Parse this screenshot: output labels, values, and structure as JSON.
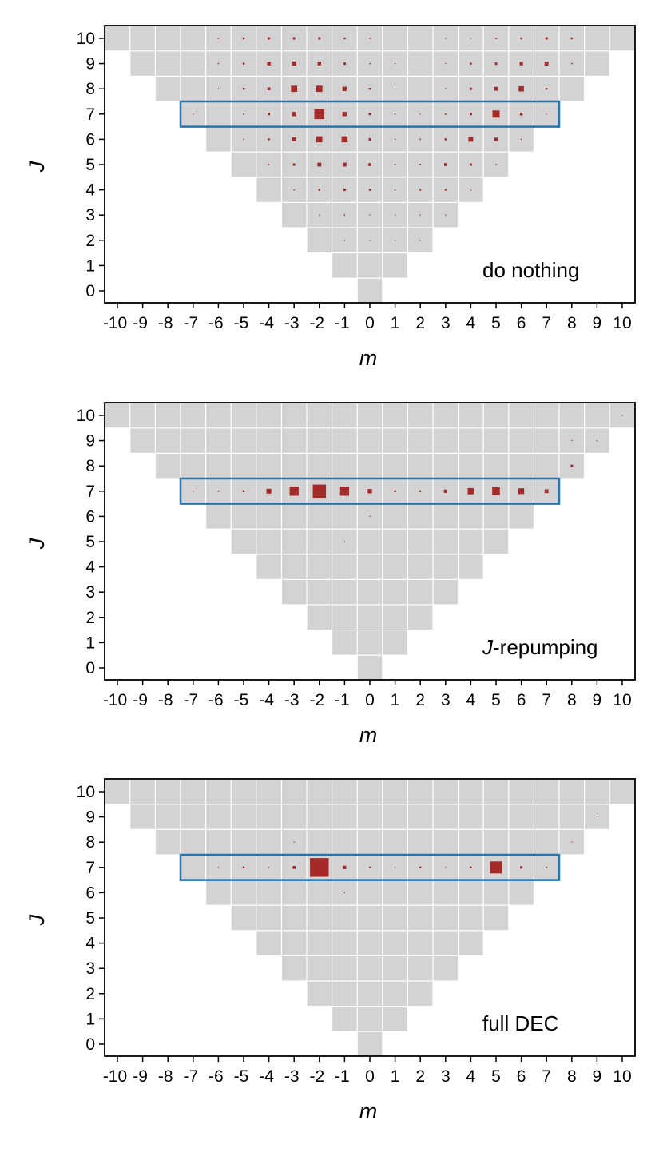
{
  "colors": {
    "cell": "#d3d3d3",
    "cell_border": "#ffffff",
    "marker": "#a52a2a",
    "highlight": "#1f77b4",
    "axis": "#000000"
  },
  "chart_data": [
    {
      "type": "heatmap",
      "label": "do nothing",
      "label_prefix": "",
      "label_suffix": "do nothing",
      "xlabel": "m",
      "ylabel": "J",
      "xlim": [
        -10,
        10
      ],
      "ylim": [
        0,
        10
      ],
      "x_ticks": [
        "-10",
        "-9",
        "-8",
        "-7",
        "-6",
        "-5",
        "-4",
        "-3",
        "-2",
        "-1",
        "0",
        "1",
        "2",
        "3",
        "4",
        "5",
        "6",
        "7",
        "8",
        "9",
        "10"
      ],
      "y_ticks": [
        "0",
        "1",
        "2",
        "3",
        "4",
        "5",
        "6",
        "7",
        "8",
        "9",
        "10"
      ],
      "highlight_row": 7,
      "highlight_m_range": [
        -7,
        7
      ],
      "points": [
        {
          "J": 10,
          "m": -6,
          "w": 0.05
        },
        {
          "J": 10,
          "m": -5,
          "w": 0.08
        },
        {
          "J": 10,
          "m": -4,
          "w": 0.1
        },
        {
          "J": 10,
          "m": -3,
          "w": 0.1
        },
        {
          "J": 10,
          "m": -2,
          "w": 0.1
        },
        {
          "J": 10,
          "m": -1,
          "w": 0.08
        },
        {
          "J": 10,
          "m": 0,
          "w": 0.05
        },
        {
          "J": 10,
          "m": 3,
          "w": 0.03
        },
        {
          "J": 10,
          "m": 4,
          "w": 0.04
        },
        {
          "J": 10,
          "m": 5,
          "w": 0.06
        },
        {
          "J": 10,
          "m": 6,
          "w": 0.08
        },
        {
          "J": 10,
          "m": 7,
          "w": 0.1
        },
        {
          "J": 10,
          "m": 8,
          "w": 0.08
        },
        {
          "J": 9,
          "m": -6,
          "w": 0.05
        },
        {
          "J": 9,
          "m": -5,
          "w": 0.08
        },
        {
          "J": 9,
          "m": -4,
          "w": 0.15
        },
        {
          "J": 9,
          "m": -3,
          "w": 0.18
        },
        {
          "J": 9,
          "m": -2,
          "w": 0.15
        },
        {
          "J": 9,
          "m": -1,
          "w": 0.1
        },
        {
          "J": 9,
          "m": 0,
          "w": 0.05
        },
        {
          "J": 9,
          "m": 1,
          "w": 0.03
        },
        {
          "J": 9,
          "m": 3,
          "w": 0.04
        },
        {
          "J": 9,
          "m": 4,
          "w": 0.08
        },
        {
          "J": 9,
          "m": 5,
          "w": 0.1
        },
        {
          "J": 9,
          "m": 6,
          "w": 0.14
        },
        {
          "J": 9,
          "m": 7,
          "w": 0.16
        },
        {
          "J": 9,
          "m": 8,
          "w": 0.05
        },
        {
          "J": 8,
          "m": -6,
          "w": 0.04
        },
        {
          "J": 8,
          "m": -5,
          "w": 0.08
        },
        {
          "J": 8,
          "m": -4,
          "w": 0.12
        },
        {
          "J": 8,
          "m": -3,
          "w": 0.26
        },
        {
          "J": 8,
          "m": -2,
          "w": 0.26
        },
        {
          "J": 8,
          "m": -1,
          "w": 0.18
        },
        {
          "J": 8,
          "m": 0,
          "w": 0.08
        },
        {
          "J": 8,
          "m": 1,
          "w": 0.05
        },
        {
          "J": 8,
          "m": 3,
          "w": 0.05
        },
        {
          "J": 8,
          "m": 4,
          "w": 0.1
        },
        {
          "J": 8,
          "m": 5,
          "w": 0.16
        },
        {
          "J": 8,
          "m": 6,
          "w": 0.22
        },
        {
          "J": 8,
          "m": 7,
          "w": 0.08
        },
        {
          "J": 7,
          "m": -7,
          "w": 0.03
        },
        {
          "J": 7,
          "m": -5,
          "w": 0.05
        },
        {
          "J": 7,
          "m": -4,
          "w": 0.1
        },
        {
          "J": 7,
          "m": -3,
          "w": 0.18
        },
        {
          "J": 7,
          "m": -2,
          "w": 0.42
        },
        {
          "J": 7,
          "m": -1,
          "w": 0.18
        },
        {
          "J": 7,
          "m": 0,
          "w": 0.1
        },
        {
          "J": 7,
          "m": 1,
          "w": 0.05
        },
        {
          "J": 7,
          "m": 2,
          "w": 0.04
        },
        {
          "J": 7,
          "m": 3,
          "w": 0.06
        },
        {
          "J": 7,
          "m": 4,
          "w": 0.1
        },
        {
          "J": 7,
          "m": 5,
          "w": 0.3
        },
        {
          "J": 7,
          "m": 6,
          "w": 0.12
        },
        {
          "J": 7,
          "m": 7,
          "w": 0.04
        },
        {
          "J": 6,
          "m": -5,
          "w": 0.04
        },
        {
          "J": 6,
          "m": -4,
          "w": 0.08
        },
        {
          "J": 6,
          "m": -3,
          "w": 0.16
        },
        {
          "J": 6,
          "m": -2,
          "w": 0.25
        },
        {
          "J": 6,
          "m": -1,
          "w": 0.25
        },
        {
          "J": 6,
          "m": 0,
          "w": 0.1
        },
        {
          "J": 6,
          "m": 1,
          "w": 0.05
        },
        {
          "J": 6,
          "m": 2,
          "w": 0.05
        },
        {
          "J": 6,
          "m": 3,
          "w": 0.08
        },
        {
          "J": 6,
          "m": 4,
          "w": 0.2
        },
        {
          "J": 6,
          "m": 5,
          "w": 0.14
        },
        {
          "J": 6,
          "m": 6,
          "w": 0.05
        },
        {
          "J": 5,
          "m": -4,
          "w": 0.05
        },
        {
          "J": 5,
          "m": -3,
          "w": 0.1
        },
        {
          "J": 5,
          "m": -2,
          "w": 0.16
        },
        {
          "J": 5,
          "m": -1,
          "w": 0.16
        },
        {
          "J": 5,
          "m": 0,
          "w": 0.12
        },
        {
          "J": 5,
          "m": 1,
          "w": 0.06
        },
        {
          "J": 5,
          "m": 2,
          "w": 0.06
        },
        {
          "J": 5,
          "m": 3,
          "w": 0.12
        },
        {
          "J": 5,
          "m": 4,
          "w": 0.1
        },
        {
          "J": 5,
          "m": 5,
          "w": 0.05
        },
        {
          "J": 4,
          "m": -3,
          "w": 0.05
        },
        {
          "J": 4,
          "m": -2,
          "w": 0.08
        },
        {
          "J": 4,
          "m": -1,
          "w": 0.1
        },
        {
          "J": 4,
          "m": 0,
          "w": 0.08
        },
        {
          "J": 4,
          "m": 1,
          "w": 0.05
        },
        {
          "J": 4,
          "m": 2,
          "w": 0.07
        },
        {
          "J": 4,
          "m": 3,
          "w": 0.07
        },
        {
          "J": 4,
          "m": 4,
          "w": 0.03
        },
        {
          "J": 3,
          "m": -2,
          "w": 0.04
        },
        {
          "J": 3,
          "m": -1,
          "w": 0.05
        },
        {
          "J": 3,
          "m": 0,
          "w": 0.04
        },
        {
          "J": 3,
          "m": 1,
          "w": 0.04
        },
        {
          "J": 3,
          "m": 2,
          "w": 0.03
        },
        {
          "J": 3,
          "m": 3,
          "w": 0.03
        },
        {
          "J": 2,
          "m": -1,
          "w": 0.03
        },
        {
          "J": 2,
          "m": 0,
          "w": 0.03
        },
        {
          "J": 2,
          "m": 1,
          "w": 0.02
        },
        {
          "J": 2,
          "m": 2,
          "w": 0.02
        }
      ]
    },
    {
      "type": "heatmap",
      "label": "J-repumping",
      "label_prefix": "J",
      "label_suffix": "-repumping",
      "xlabel": "m",
      "ylabel": "J",
      "xlim": [
        -10,
        10
      ],
      "ylim": [
        0,
        10
      ],
      "x_ticks": [
        "-10",
        "-9",
        "-8",
        "-7",
        "-6",
        "-5",
        "-4",
        "-3",
        "-2",
        "-1",
        "0",
        "1",
        "2",
        "3",
        "4",
        "5",
        "6",
        "7",
        "8",
        "9",
        "10"
      ],
      "y_ticks": [
        "0",
        "1",
        "2",
        "3",
        "4",
        "5",
        "6",
        "7",
        "8",
        "9",
        "10"
      ],
      "highlight_row": 7,
      "highlight_m_range": [
        -7,
        7
      ],
      "points": [
        {
          "J": 10,
          "m": 10,
          "w": 0.04
        },
        {
          "J": 9,
          "m": 8,
          "w": 0.04
        },
        {
          "J": 9,
          "m": 9,
          "w": 0.05
        },
        {
          "J": 8,
          "m": 8,
          "w": 0.1
        },
        {
          "J": 7,
          "m": -7,
          "w": 0.04
        },
        {
          "J": 7,
          "m": -6,
          "w": 0.05
        },
        {
          "J": 7,
          "m": -5,
          "w": 0.08
        },
        {
          "J": 7,
          "m": -4,
          "w": 0.2
        },
        {
          "J": 7,
          "m": -3,
          "w": 0.38
        },
        {
          "J": 7,
          "m": -2,
          "w": 0.55
        },
        {
          "J": 7,
          "m": -1,
          "w": 0.38
        },
        {
          "J": 7,
          "m": 0,
          "w": 0.18
        },
        {
          "J": 7,
          "m": 1,
          "w": 0.08
        },
        {
          "J": 7,
          "m": 2,
          "w": 0.07
        },
        {
          "J": 7,
          "m": 3,
          "w": 0.14
        },
        {
          "J": 7,
          "m": 4,
          "w": 0.26
        },
        {
          "J": 7,
          "m": 5,
          "w": 0.32
        },
        {
          "J": 7,
          "m": 6,
          "w": 0.24
        },
        {
          "J": 7,
          "m": 7,
          "w": 0.16
        },
        {
          "J": 6,
          "m": 0,
          "w": 0.02
        },
        {
          "J": 5,
          "m": -1,
          "w": 0.02
        }
      ]
    },
    {
      "type": "heatmap",
      "label": "full DEC",
      "label_prefix": "",
      "label_suffix": "full DEC",
      "xlabel": "m",
      "ylabel": "J",
      "xlim": [
        -10,
        10
      ],
      "ylim": [
        0,
        10
      ],
      "x_ticks": [
        "-10",
        "-9",
        "-8",
        "-7",
        "-6",
        "-5",
        "-4",
        "-3",
        "-2",
        "-1",
        "0",
        "1",
        "2",
        "3",
        "4",
        "5",
        "6",
        "7",
        "8",
        "9",
        "10"
      ],
      "y_ticks": [
        "0",
        "1",
        "2",
        "3",
        "4",
        "5",
        "6",
        "7",
        "8",
        "9",
        "10"
      ],
      "highlight_row": 7,
      "highlight_m_range": [
        -7,
        7
      ],
      "points": [
        {
          "J": 9,
          "m": 9,
          "w": 0.03
        },
        {
          "J": 8,
          "m": -3,
          "w": 0.03
        },
        {
          "J": 8,
          "m": 8,
          "w": 0.04
        },
        {
          "J": 7,
          "m": -6,
          "w": 0.04
        },
        {
          "J": 7,
          "m": -5,
          "w": 0.08
        },
        {
          "J": 7,
          "m": -4,
          "w": 0.04
        },
        {
          "J": 7,
          "m": -3,
          "w": 0.12
        },
        {
          "J": 7,
          "m": -2,
          "w": 0.78
        },
        {
          "J": 7,
          "m": -1,
          "w": 0.14
        },
        {
          "J": 7,
          "m": 0,
          "w": 0.07
        },
        {
          "J": 7,
          "m": 1,
          "w": 0.03
        },
        {
          "J": 7,
          "m": 2,
          "w": 0.08
        },
        {
          "J": 7,
          "m": 3,
          "w": 0.03
        },
        {
          "J": 7,
          "m": 4,
          "w": 0.08
        },
        {
          "J": 7,
          "m": 5,
          "w": 0.5
        },
        {
          "J": 7,
          "m": 6,
          "w": 0.1
        },
        {
          "J": 7,
          "m": 7,
          "w": 0.06
        },
        {
          "J": 6,
          "m": -1,
          "w": 0.02
        }
      ]
    }
  ]
}
